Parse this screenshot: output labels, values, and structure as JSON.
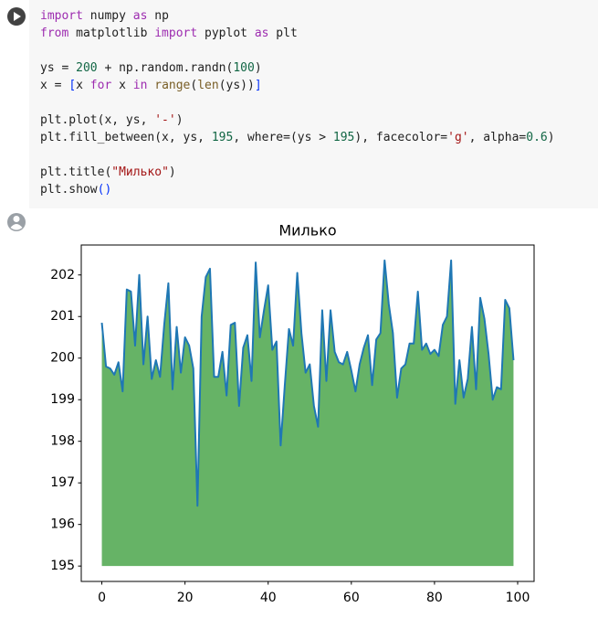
{
  "code": {
    "lines": [
      [
        {
          "text": "import",
          "color": "#9d2cb0"
        },
        {
          "text": " numpy "
        },
        {
          "text": "as",
          "color": "#9d2cb0"
        },
        {
          "text": " np"
        }
      ],
      [
        {
          "text": "from",
          "color": "#9d2cb0"
        },
        {
          "text": " matplotlib "
        },
        {
          "text": "import",
          "color": "#9d2cb0"
        },
        {
          "text": " pyplot "
        },
        {
          "text": "as",
          "color": "#9d2cb0"
        },
        {
          "text": " plt"
        }
      ],
      [],
      [
        {
          "text": "ys = "
        },
        {
          "text": "200",
          "color": "#116644"
        },
        {
          "text": " + np.random.randn("
        },
        {
          "text": "100",
          "color": "#116644"
        },
        {
          "text": ")"
        }
      ],
      [
        {
          "text": "x = "
        },
        {
          "text": "[",
          "color": "#0431fa"
        },
        {
          "text": "x "
        },
        {
          "text": "for",
          "color": "#9d2cb0"
        },
        {
          "text": " x "
        },
        {
          "text": "in",
          "color": "#9d2cb0"
        },
        {
          "text": " "
        },
        {
          "text": "range",
          "color": "#795e26"
        },
        {
          "text": "("
        },
        {
          "text": "len",
          "color": "#795e26"
        },
        {
          "text": "(ys))"
        },
        {
          "text": "]",
          "color": "#0431fa"
        }
      ],
      [],
      [
        {
          "text": "plt.plot(x, ys, "
        },
        {
          "text": "'-'",
          "color": "#a31515"
        },
        {
          "text": ")"
        }
      ],
      [
        {
          "text": "plt.fill_between(x, ys, "
        },
        {
          "text": "195",
          "color": "#116644"
        },
        {
          "text": ", where=(ys > "
        },
        {
          "text": "195",
          "color": "#116644"
        },
        {
          "text": "), facecolor="
        },
        {
          "text": "'g'",
          "color": "#a31515"
        },
        {
          "text": ", alpha="
        },
        {
          "text": "0.6",
          "color": "#116644"
        },
        {
          "text": ")"
        }
      ],
      [],
      [
        {
          "text": "plt.title("
        },
        {
          "text": "\"Милько\"",
          "color": "#a31515"
        },
        {
          "text": ")"
        }
      ],
      [
        {
          "text": "plt.show"
        },
        {
          "text": "()",
          "color": "#0431fa"
        }
      ]
    ]
  },
  "chart_data": {
    "type": "line",
    "title": "Милько",
    "x": [
      0,
      1,
      2,
      3,
      4,
      5,
      6,
      7,
      8,
      9,
      10,
      11,
      12,
      13,
      14,
      15,
      16,
      17,
      18,
      19,
      20,
      21,
      22,
      23,
      24,
      25,
      26,
      27,
      28,
      29,
      30,
      31,
      32,
      33,
      34,
      35,
      36,
      37,
      38,
      39,
      40,
      41,
      42,
      43,
      44,
      45,
      46,
      47,
      48,
      49,
      50,
      51,
      52,
      53,
      54,
      55,
      56,
      57,
      58,
      59,
      60,
      61,
      62,
      63,
      64,
      65,
      66,
      67,
      68,
      69,
      70,
      71,
      72,
      73,
      74,
      75,
      76,
      77,
      78,
      79,
      80,
      81,
      82,
      83,
      84,
      85,
      86,
      87,
      88,
      89,
      90,
      91,
      92,
      93,
      94,
      95,
      96,
      97,
      98,
      99
    ],
    "series": [
      {
        "color": "#1f77b4",
        "fill_color": "#008000",
        "fill_alpha": 0.6,
        "fill_base": 195,
        "values": [
          200.85,
          199.8,
          199.75,
          199.6,
          199.9,
          199.2,
          201.65,
          201.6,
          200.3,
          202.0,
          199.85,
          201.0,
          199.5,
          199.95,
          199.55,
          200.8,
          201.8,
          199.25,
          200.75,
          199.65,
          200.5,
          200.3,
          199.75,
          196.45,
          201.0,
          201.95,
          202.15,
          199.55,
          199.55,
          200.15,
          199.1,
          200.8,
          200.85,
          198.85,
          200.25,
          200.55,
          199.45,
          202.3,
          200.5,
          201.15,
          201.75,
          200.2,
          200.4,
          197.9,
          199.35,
          200.7,
          200.3,
          202.05,
          200.6,
          199.65,
          199.85,
          198.85,
          198.35,
          201.15,
          199.45,
          201.15,
          200.15,
          199.9,
          199.85,
          200.15,
          199.7,
          199.2,
          199.85,
          200.25,
          200.55,
          199.35,
          200.45,
          200.6,
          202.35,
          201.3,
          200.6,
          199.05,
          199.75,
          199.85,
          200.35,
          200.35,
          201.6,
          200.2,
          200.35,
          200.1,
          200.2,
          200.05,
          200.8,
          201.0,
          202.35,
          198.9,
          199.95,
          199.05,
          199.5,
          200.75,
          199.25,
          201.45,
          200.95,
          200.1,
          199.0,
          199.3,
          199.25,
          201.4,
          201.2,
          199.95
        ]
      }
    ],
    "xlim": [
      -4.95,
      103.95
    ],
    "xticks": [
      0,
      20,
      40,
      60,
      80,
      100
    ],
    "ylim": [
      194.63,
      202.72
    ],
    "yticks": [
      195,
      196,
      197,
      198,
      199,
      200,
      201,
      202
    ]
  }
}
